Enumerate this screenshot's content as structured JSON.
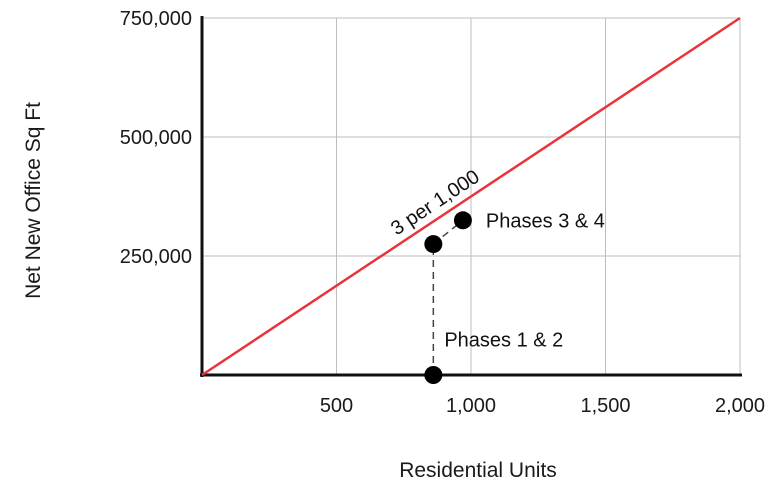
{
  "chart_data": {
    "type": "scatter",
    "title": "",
    "xlabel": "Residential Units",
    "ylabel": "Net New Office Sq Ft",
    "xlim": [
      0,
      2000
    ],
    "ylim": [
      0,
      750000
    ],
    "x_ticks": [
      {
        "value": 500,
        "label": "500"
      },
      {
        "value": 1000,
        "label": "1,000"
      },
      {
        "value": 1500,
        "label": "1,500"
      },
      {
        "value": 2000,
        "label": "2,000"
      }
    ],
    "y_ticks": [
      {
        "value": 250000,
        "label": "250,000"
      },
      {
        "value": 500000,
        "label": "500,000"
      },
      {
        "value": 750000,
        "label": "750,000"
      }
    ],
    "grid": true,
    "reference_line": {
      "label": "3 per 1,000",
      "color": "#e8343a",
      "points": [
        [
          0,
          0
        ],
        [
          2000,
          750000
        ]
      ]
    },
    "points": [
      {
        "x": 860,
        "y": 0
      },
      {
        "x": 860,
        "y": 275000
      },
      {
        "x": 970,
        "y": 325000
      }
    ],
    "connectors": [
      {
        "from": [
          860,
          0
        ],
        "to": [
          860,
          275000
        ],
        "style": "dashed"
      },
      {
        "from": [
          860,
          275000
        ],
        "to": [
          970,
          325000
        ],
        "style": "dashed"
      }
    ],
    "annotations": [
      {
        "text": "Phases 1 & 2",
        "x": 860,
        "y": 75000
      },
      {
        "text": "Phases 3 & 4",
        "x": 970,
        "y": 325000
      }
    ]
  }
}
